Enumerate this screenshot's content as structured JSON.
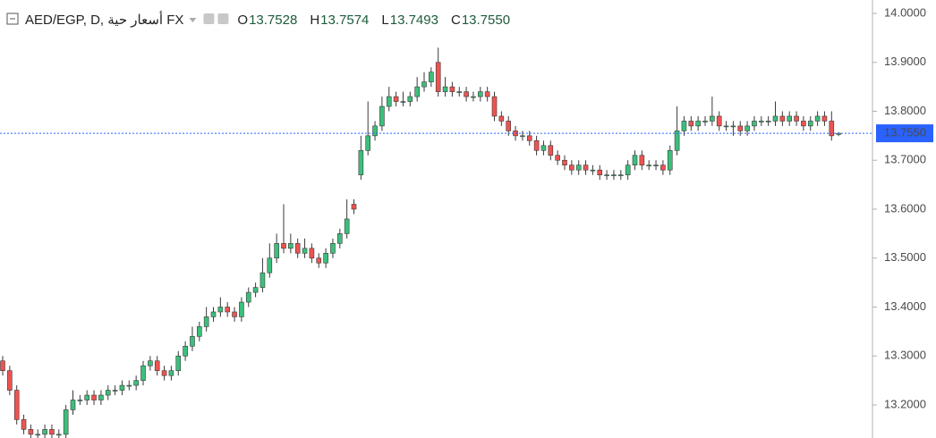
{
  "chart_data": {
    "type": "candlestick",
    "title": "AED/EGP, D, أسعار حية FX",
    "legend_items": [
      {
        "key": "O",
        "text": "13.7528"
      },
      {
        "key": "H",
        "text": "13.7574"
      },
      {
        "key": "L",
        "text": "13.7493"
      },
      {
        "key": "C",
        "text": "13.7550"
      }
    ],
    "open": [
      13.29,
      13.27,
      13.23,
      13.17,
      13.15,
      13.14,
      13.14,
      13.15,
      13.14,
      13.14,
      13.19,
      13.21,
      13.21,
      13.22,
      13.21,
      13.22,
      13.23,
      13.23,
      13.24,
      13.24,
      13.25,
      13.28,
      13.29,
      13.27,
      13.26,
      13.27,
      13.3,
      13.32,
      13.34,
      13.36,
      13.38,
      13.39,
      13.4,
      13.39,
      13.38,
      13.41,
      13.43,
      13.44,
      13.47,
      13.5,
      13.53,
      13.52,
      13.53,
      13.51,
      13.52,
      13.5,
      13.49,
      13.51,
      13.53,
      13.55,
      13.61,
      13.67,
      13.72,
      13.75,
      13.77,
      13.81,
      13.83,
      13.82,
      13.82,
      13.83,
      13.85,
      13.86,
      13.9,
      13.84,
      13.85,
      13.84,
      13.84,
      13.83,
      13.83,
      13.84,
      13.83,
      13.79,
      13.78,
      13.76,
      13.75,
      13.75,
      13.74,
      13.72,
      13.73,
      13.71,
      13.7,
      13.69,
      13.68,
      13.69,
      13.68,
      13.68,
      13.67,
      13.67,
      13.67,
      13.67,
      13.69,
      13.71,
      13.69,
      13.69,
      13.69,
      13.68,
      13.72,
      13.76,
      13.78,
      13.77,
      13.78,
      13.78,
      13.79,
      13.77,
      13.77,
      13.77,
      13.76,
      13.77,
      13.78,
      13.78,
      13.78,
      13.79,
      13.78,
      13.79,
      13.78,
      13.77,
      13.78,
      13.79,
      13.78,
      13.7528
    ],
    "high": [
      13.3,
      13.28,
      13.24,
      13.18,
      13.16,
      13.15,
      13.16,
      13.16,
      13.15,
      13.2,
      13.23,
      13.22,
      13.23,
      13.23,
      13.23,
      13.24,
      13.24,
      13.25,
      13.25,
      13.26,
      13.29,
      13.3,
      13.3,
      13.28,
      13.28,
      13.31,
      13.33,
      13.36,
      13.37,
      13.4,
      13.4,
      13.42,
      13.41,
      13.4,
      13.42,
      13.44,
      13.45,
      13.5,
      13.53,
      13.55,
      13.61,
      13.55,
      13.54,
      13.54,
      13.53,
      13.51,
      13.52,
      13.54,
      13.56,
      13.62,
      13.62,
      13.75,
      13.82,
      13.78,
      13.83,
      13.85,
      13.84,
      13.84,
      13.84,
      13.87,
      13.88,
      13.89,
      13.93,
      13.87,
      13.86,
      13.85,
      13.85,
      13.84,
      13.85,
      13.85,
      13.84,
      13.8,
      13.79,
      13.77,
      13.76,
      13.76,
      13.75,
      13.74,
      13.74,
      13.72,
      13.71,
      13.7,
      13.7,
      13.7,
      13.69,
      13.69,
      13.68,
      13.68,
      13.68,
      13.7,
      13.72,
      13.72,
      13.7,
      13.7,
      13.7,
      13.73,
      13.81,
      13.79,
      13.79,
      13.79,
      13.79,
      13.83,
      13.8,
      13.78,
      13.78,
      13.78,
      13.78,
      13.79,
      13.79,
      13.79,
      13.82,
      13.8,
      13.8,
      13.8,
      13.79,
      13.79,
      13.8,
      13.8,
      13.8,
      13.7574
    ],
    "low": [
      13.26,
      13.22,
      13.16,
      13.14,
      13.13,
      13.12,
      13.13,
      13.13,
      13.13,
      13.13,
      13.18,
      13.2,
      13.2,
      13.2,
      13.2,
      13.21,
      13.22,
      13.22,
      13.23,
      13.23,
      13.24,
      13.27,
      13.26,
      13.25,
      13.25,
      13.26,
      13.29,
      13.31,
      13.33,
      13.35,
      13.37,
      13.38,
      13.38,
      13.37,
      13.37,
      13.4,
      13.42,
      13.43,
      13.46,
      13.49,
      13.51,
      13.51,
      13.5,
      13.5,
      13.49,
      13.48,
      13.48,
      13.5,
      13.52,
      13.54,
      13.59,
      13.66,
      13.71,
      13.74,
      13.76,
      13.8,
      13.81,
      13.81,
      13.81,
      13.82,
      13.84,
      13.85,
      13.83,
      13.83,
      13.83,
      13.83,
      13.82,
      13.82,
      13.82,
      13.82,
      13.78,
      13.77,
      13.75,
      13.74,
      13.74,
      13.73,
      13.71,
      13.71,
      13.7,
      13.69,
      13.68,
      13.67,
      13.67,
      13.67,
      13.67,
      13.66,
      13.66,
      13.66,
      13.66,
      13.66,
      13.68,
      13.68,
      13.68,
      13.68,
      13.67,
      13.67,
      13.71,
      13.75,
      13.76,
      13.76,
      13.77,
      13.77,
      13.76,
      13.76,
      13.75,
      13.75,
      13.75,
      13.76,
      13.77,
      13.77,
      13.77,
      13.77,
      13.77,
      13.77,
      13.76,
      13.76,
      13.77,
      13.77,
      13.74,
      13.7493
    ],
    "close": [
      13.27,
      13.23,
      13.17,
      13.15,
      13.14,
      13.14,
      13.15,
      13.14,
      13.14,
      13.19,
      13.21,
      13.21,
      13.22,
      13.21,
      13.22,
      13.23,
      13.23,
      13.24,
      13.24,
      13.25,
      13.28,
      13.29,
      13.27,
      13.26,
      13.27,
      13.3,
      13.32,
      13.34,
      13.36,
      13.38,
      13.39,
      13.4,
      13.39,
      13.38,
      13.41,
      13.43,
      13.44,
      13.47,
      13.5,
      13.53,
      13.52,
      13.53,
      13.51,
      13.52,
      13.5,
      13.49,
      13.51,
      13.53,
      13.55,
      13.58,
      13.6,
      13.72,
      13.75,
      13.77,
      13.81,
      13.83,
      13.82,
      13.82,
      13.83,
      13.85,
      13.86,
      13.88,
      13.84,
      13.85,
      13.84,
      13.84,
      13.83,
      13.83,
      13.84,
      13.83,
      13.79,
      13.78,
      13.76,
      13.75,
      13.75,
      13.74,
      13.72,
      13.73,
      13.71,
      13.7,
      13.69,
      13.68,
      13.69,
      13.68,
      13.68,
      13.67,
      13.67,
      13.67,
      13.67,
      13.69,
      13.71,
      13.69,
      13.69,
      13.69,
      13.68,
      13.72,
      13.76,
      13.78,
      13.77,
      13.78,
      13.78,
      13.79,
      13.77,
      13.77,
      13.77,
      13.76,
      13.77,
      13.78,
      13.78,
      13.78,
      13.79,
      13.78,
      13.79,
      13.78,
      13.77,
      13.78,
      13.79,
      13.78,
      13.75,
      13.755
    ],
    "up_color": "#3cbf7c",
    "down_color": "#ef5350",
    "wick_color": "#3a3a3a",
    "price_line_color": "#2962ff",
    "ylim": [
      13.1324,
      14.0274
    ],
    "yticks": [
      {
        "value": 13.2,
        "label": "13.2000"
      },
      {
        "value": 13.3,
        "label": "13.3000"
      },
      {
        "value": 13.4,
        "label": "13.4000"
      },
      {
        "value": 13.5,
        "label": "13.5000"
      },
      {
        "value": 13.6,
        "label": "13.6000"
      },
      {
        "value": 13.7,
        "label": "13.7000"
      },
      {
        "value": 13.8,
        "label": "13.8000"
      },
      {
        "value": 13.9,
        "label": "13.9000"
      },
      {
        "value": 14,
        "label": "14.0000"
      }
    ]
  }
}
